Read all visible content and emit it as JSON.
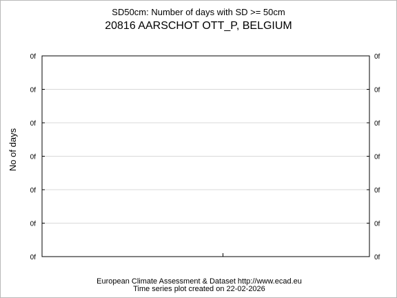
{
  "chart_data": {
    "type": "line",
    "subtitle": "SD50cm: Number of days with SD >= 50cm",
    "title": "20816 AARSCHOT OTT_P, BELGIUM",
    "xlabel": "",
    "ylabel": "No of days",
    "x_tick_labels": [],
    "y_tick_labels": [
      "0f",
      "0f",
      "0f",
      "0f",
      "0f",
      "0f",
      "0f"
    ],
    "y_tick_labels_right": [
      "0f",
      "0f",
      "0f",
      "0f",
      "0f",
      "0f",
      "0f"
    ],
    "ylim": [
      0,
      6
    ],
    "grid": true,
    "series": []
  },
  "footer": {
    "line1": "European Climate Assessment & Dataset  http://www.ecad.eu",
    "line2": "Time series plot created on 22-02-2026"
  }
}
